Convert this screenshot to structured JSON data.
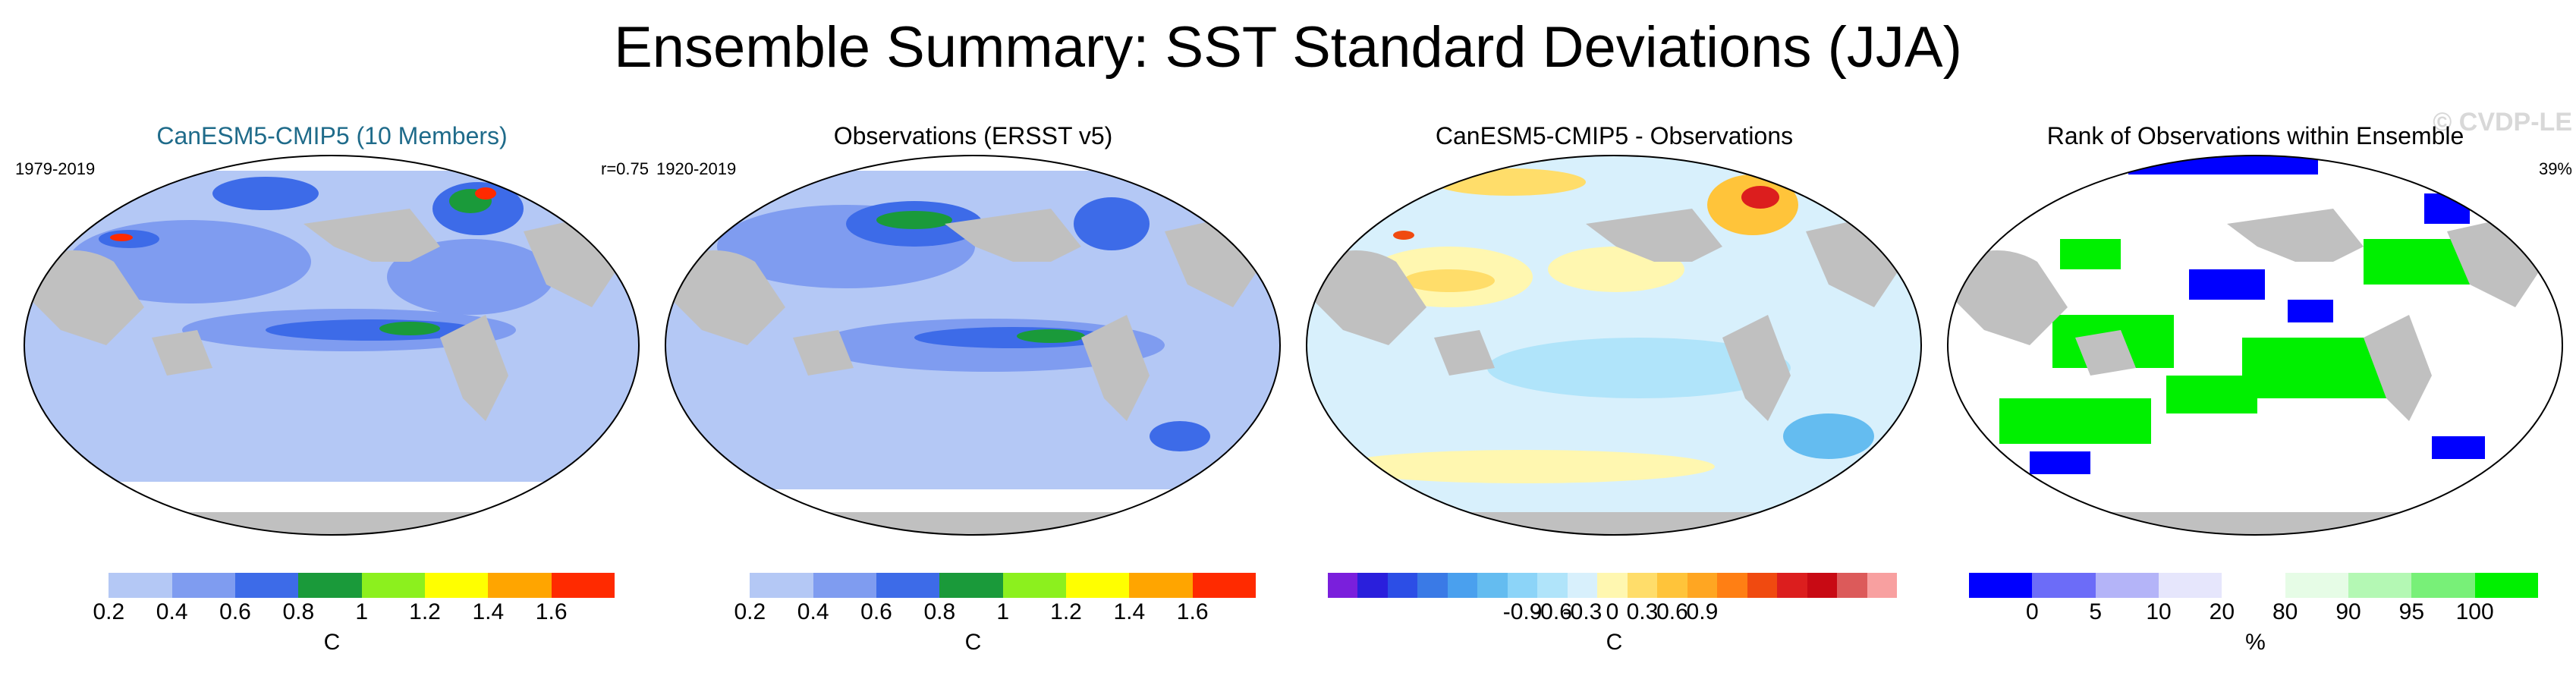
{
  "figure_title": "Ensemble Summary: SST Standard Deviations (JJA)",
  "watermark": "© CVDP-LE",
  "colors": {
    "land": "#c0c0c0",
    "ocean_default": "#b4c8f5",
    "title_accent": "#1f6b8a"
  },
  "panels": [
    {
      "title": "CanESM5-CMIP5 (10 Members)",
      "period": "1979-2019",
      "stat": "r=0.75",
      "unit": "C",
      "colorbar": {
        "colors": [
          "#ffffff",
          "#b4c8f5",
          "#7f9cf0",
          "#3d6be8",
          "#1a9a3a",
          "#8cf01e",
          "#ffff00",
          "#ffa500",
          "#ff2a00"
        ],
        "tick_labels": [
          "0.2",
          "0.4",
          "0.6",
          "0.8",
          "1",
          "1.2",
          "1.4",
          "1.6"
        ]
      }
    },
    {
      "title": "Observations (ERSST v5)",
      "period": "1920-2019",
      "stat": "",
      "unit": "C",
      "colorbar": {
        "colors": [
          "#ffffff",
          "#b4c8f5",
          "#7f9cf0",
          "#3d6be8",
          "#1a9a3a",
          "#8cf01e",
          "#ffff00",
          "#ffa500",
          "#ff2a00"
        ],
        "tick_labels": [
          "0.2",
          "0.4",
          "0.6",
          "0.8",
          "1",
          "1.2",
          "1.4",
          "1.6"
        ]
      }
    },
    {
      "title": "CanESM5-CMIP5 - Observations",
      "period": "",
      "stat": "",
      "unit": "C",
      "colorbar": {
        "colors": [
          "#7a1fdc",
          "#2a1fdc",
          "#2c4ee6",
          "#3a7ae6",
          "#4aa0ee",
          "#64bcf0",
          "#8cd4f8",
          "#b0e4fa",
          "#d8f0fc",
          "#fff7b0",
          "#ffdd6a",
          "#ffc43a",
          "#ffa622",
          "#ff7f14",
          "#f04a10",
          "#dc1e1e",
          "#c80a14",
          "#dc5a5a",
          "#f8a0a0"
        ],
        "tick_labels": [
          "-0.9",
          "-0.6",
          "-0.3",
          "0",
          "0.3",
          "0.6",
          "0.9"
        ]
      }
    },
    {
      "title": "Rank of Observations within Ensemble",
      "period": "",
      "stat": "39%",
      "unit": "%",
      "colorbar": {
        "colors": [
          "#0000ff",
          "#6c6cf8",
          "#b4b4f8",
          "#e6e6fc",
          "#ffffff",
          "#e6fce6",
          "#b4f8b4",
          "#78f078",
          "#00f000"
        ],
        "tick_labels": [
          "0",
          "5",
          "10",
          "20",
          "80",
          "90",
          "95",
          "100"
        ]
      }
    }
  ]
}
